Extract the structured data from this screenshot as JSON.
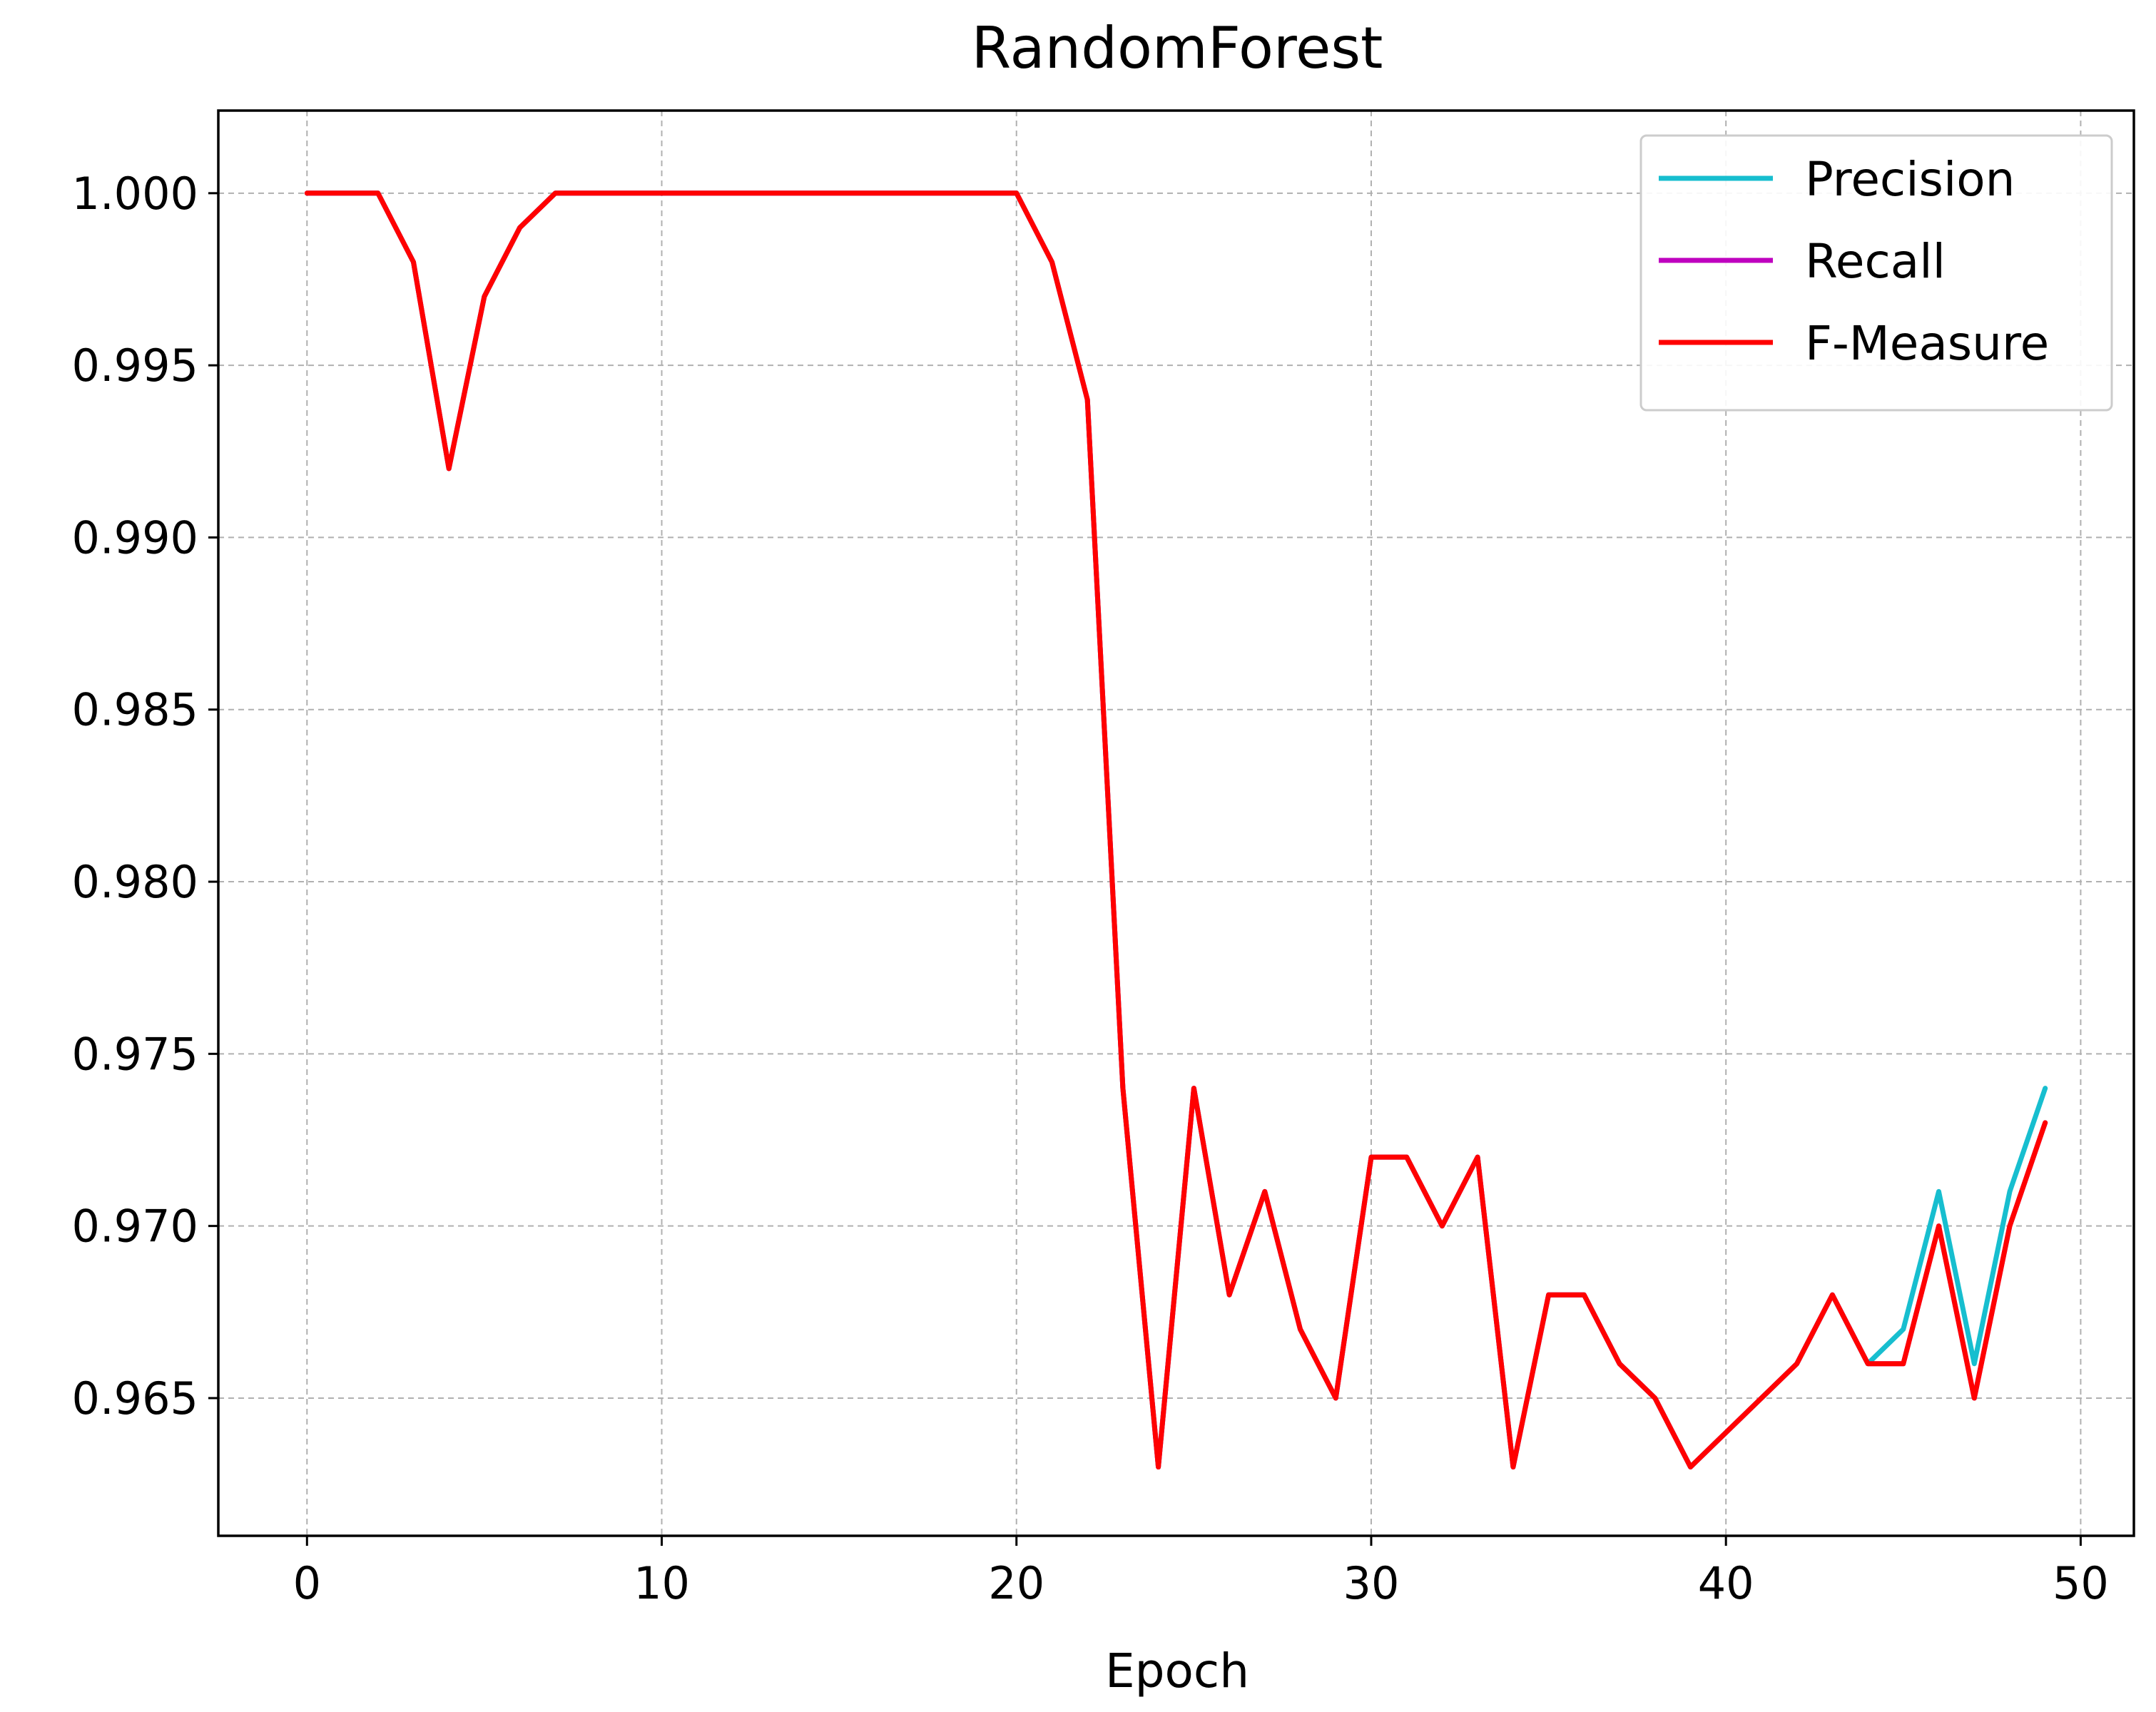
{
  "chart_data": {
    "type": "line",
    "title": "RandomForest",
    "xlabel": "Epoch",
    "ylabel": "",
    "xlim": [
      -2.5,
      51.5
    ],
    "ylim": [
      0.961,
      1.0024
    ],
    "x_ticks": [
      0,
      10,
      20,
      30,
      40,
      50
    ],
    "y_ticks": [
      0.965,
      0.97,
      0.975,
      0.98,
      0.985,
      0.99,
      0.995,
      1.0
    ],
    "x_tick_labels": [
      "0",
      "10",
      "20",
      "30",
      "40",
      "50"
    ],
    "y_tick_labels": [
      "0.965",
      "0.970",
      "0.975",
      "0.980",
      "0.985",
      "0.990",
      "0.995",
      "1.000"
    ],
    "grid": true,
    "legend_position": "top-right",
    "x": [
      0,
      1,
      2,
      3,
      4,
      5,
      6,
      7,
      8,
      9,
      10,
      11,
      12,
      13,
      14,
      15,
      16,
      17,
      18,
      19,
      20,
      21,
      22,
      23,
      24,
      25,
      26,
      27,
      28,
      29,
      30,
      31,
      32,
      33,
      34,
      35,
      36,
      37,
      38,
      39,
      40,
      41,
      42,
      43,
      44,
      45,
      46,
      47,
      48,
      49
    ],
    "series": [
      {
        "name": "Precision",
        "color": "#17becf",
        "values": [
          1.0,
          1.0,
          1.0,
          0.998,
          0.992,
          0.997,
          0.999,
          1.0,
          1.0,
          1.0,
          1.0,
          1.0,
          1.0,
          1.0,
          1.0,
          1.0,
          1.0,
          1.0,
          1.0,
          1.0,
          1.0,
          0.998,
          0.994,
          0.974,
          0.963,
          0.974,
          0.968,
          0.971,
          0.967,
          0.965,
          0.972,
          0.972,
          0.97,
          0.972,
          0.963,
          0.968,
          0.968,
          0.966,
          0.965,
          0.963,
          0.964,
          0.965,
          0.966,
          0.968,
          0.966,
          0.967,
          0.971,
          0.966,
          0.971,
          0.974
        ]
      },
      {
        "name": "Recall",
        "color": "#bf00bf",
        "values": [
          1.0,
          1.0,
          1.0,
          0.998,
          0.992,
          0.997,
          0.999,
          1.0,
          1.0,
          1.0,
          1.0,
          1.0,
          1.0,
          1.0,
          1.0,
          1.0,
          1.0,
          1.0,
          1.0,
          1.0,
          1.0,
          0.998,
          0.994,
          0.974,
          0.963,
          0.974,
          0.968,
          0.971,
          0.967,
          0.965,
          0.972,
          0.972,
          0.97,
          0.972,
          0.963,
          0.968,
          0.968,
          0.966,
          0.965,
          0.963,
          0.964,
          0.965,
          0.966,
          0.968,
          0.966,
          0.966,
          0.97,
          0.965,
          0.97,
          0.973
        ]
      },
      {
        "name": "F-Measure",
        "color": "#ff0000",
        "values": [
          1.0,
          1.0,
          1.0,
          0.998,
          0.992,
          0.997,
          0.999,
          1.0,
          1.0,
          1.0,
          1.0,
          1.0,
          1.0,
          1.0,
          1.0,
          1.0,
          1.0,
          1.0,
          1.0,
          1.0,
          1.0,
          0.998,
          0.994,
          0.974,
          0.963,
          0.974,
          0.968,
          0.971,
          0.967,
          0.965,
          0.972,
          0.972,
          0.97,
          0.972,
          0.963,
          0.968,
          0.968,
          0.966,
          0.965,
          0.963,
          0.964,
          0.965,
          0.966,
          0.968,
          0.966,
          0.966,
          0.97,
          0.965,
          0.97,
          0.973
        ]
      }
    ]
  }
}
